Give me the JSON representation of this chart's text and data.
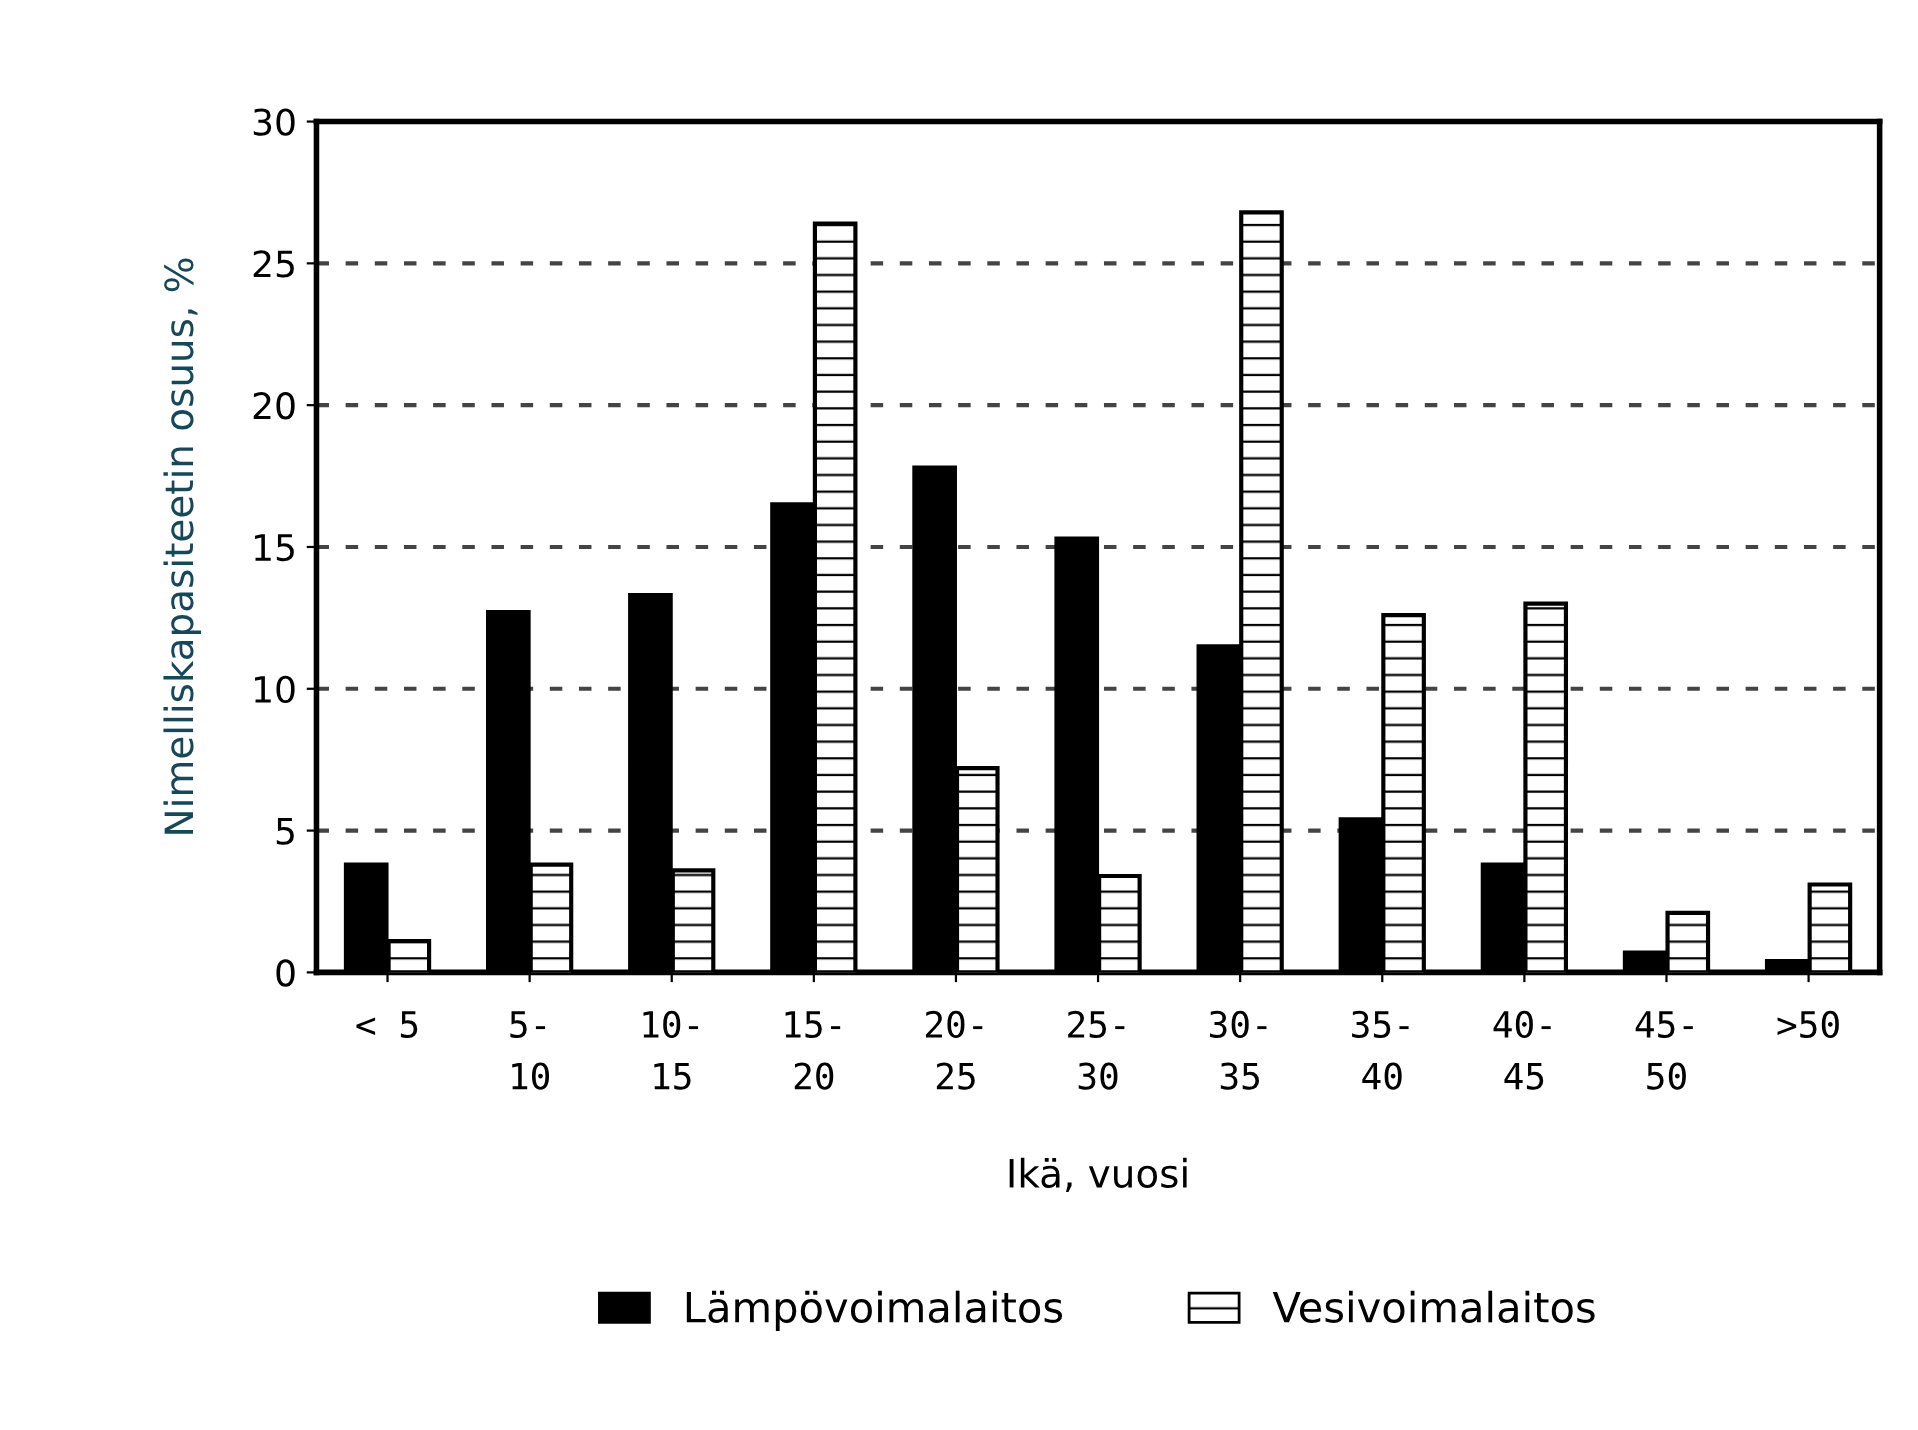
{
  "chart_data": {
    "type": "bar",
    "xlabel": "Ikä, vuosi",
    "ylabel": "Nimelliskapasiteetin osuus, %",
    "categories": [
      "< 5",
      "5-\n10",
      "10-\n15",
      "15-\n20",
      "20-\n25",
      "25-\n30",
      "30-\n35",
      "35-\n40",
      "40-\n45",
      "45-\n50",
      ">50"
    ],
    "series": [
      {
        "name": "Lämpövoimalaitos",
        "color": "#000000",
        "values": [
          3.8,
          12.7,
          13.3,
          16.5,
          17.8,
          15.3,
          11.5,
          5.4,
          3.8,
          0.7,
          0.4
        ]
      },
      {
        "name": "Vesivoimalaitos",
        "color": "#000000",
        "values": [
          1.1,
          3.8,
          3.6,
          26.4,
          7.2,
          3.4,
          26.8,
          12.6,
          13.0,
          2.1,
          3.1
        ]
      }
    ],
    "ylim": [
      0,
      30
    ],
    "yticks": [
      0,
      5,
      10,
      15,
      20,
      25,
      30
    ],
    "grid": "y",
    "legend": "bottom"
  }
}
